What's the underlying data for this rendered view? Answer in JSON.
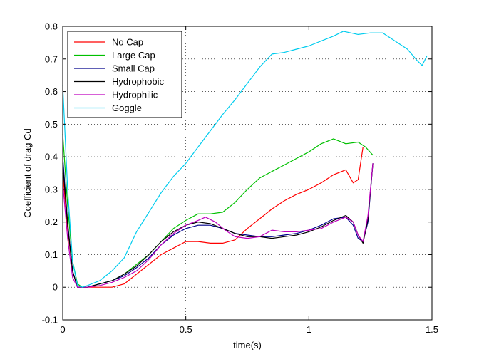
{
  "chart_data": {
    "type": "line",
    "title": "",
    "xlabel": "time(s)",
    "ylabel": "Coefficient of drag Cd",
    "xlim": [
      0,
      1.5
    ],
    "ylim": [
      -0.1,
      0.8
    ],
    "xticks": [
      0,
      0.5,
      1,
      1.5
    ],
    "xtick_labels": [
      "0",
      "0.5",
      "1",
      "1.5"
    ],
    "yticks": [
      -0.1,
      0,
      0.1,
      0.2,
      0.3,
      0.4,
      0.5,
      0.6,
      0.7,
      0.8
    ],
    "ytick_labels": [
      "-0.1",
      "0",
      "0.1",
      "0.2",
      "0.3",
      "0.4",
      "0.5",
      "0.6",
      "0.7",
      "0.8"
    ],
    "grid": true,
    "legend_position": "top-left",
    "series": [
      {
        "name": "No Cap",
        "color": "#ff0000",
        "x": [
          0,
          0.02,
          0.04,
          0.06,
          0.08,
          0.1,
          0.15,
          0.2,
          0.25,
          0.3,
          0.35,
          0.4,
          0.45,
          0.5,
          0.55,
          0.6,
          0.65,
          0.7,
          0.75,
          0.8,
          0.85,
          0.9,
          0.95,
          1.0,
          1.05,
          1.1,
          1.15,
          1.18,
          1.2,
          1.22
        ],
        "y": [
          0.35,
          0.18,
          0.05,
          0.0,
          0.0,
          0.0,
          0.0,
          0.0,
          0.01,
          0.04,
          0.07,
          0.1,
          0.12,
          0.14,
          0.14,
          0.135,
          0.135,
          0.145,
          0.18,
          0.21,
          0.24,
          0.265,
          0.285,
          0.3,
          0.32,
          0.345,
          0.36,
          0.32,
          0.33,
          0.43
        ]
      },
      {
        "name": "Large Cap",
        "color": "#00c000",
        "x": [
          0,
          0.02,
          0.04,
          0.06,
          0.08,
          0.1,
          0.15,
          0.2,
          0.25,
          0.3,
          0.35,
          0.4,
          0.45,
          0.5,
          0.55,
          0.6,
          0.65,
          0.7,
          0.75,
          0.8,
          0.85,
          0.9,
          0.95,
          1.0,
          1.05,
          1.1,
          1.15,
          1.2,
          1.23,
          1.26
        ],
        "y": [
          0.47,
          0.25,
          0.08,
          0.01,
          0.0,
          0.0,
          0.01,
          0.02,
          0.04,
          0.07,
          0.1,
          0.14,
          0.18,
          0.205,
          0.225,
          0.225,
          0.23,
          0.26,
          0.3,
          0.335,
          0.355,
          0.375,
          0.395,
          0.415,
          0.44,
          0.455,
          0.44,
          0.445,
          0.43,
          0.405
        ]
      },
      {
        "name": "Small Cap",
        "color": "#00008b",
        "x": [
          0,
          0.02,
          0.04,
          0.06,
          0.08,
          0.1,
          0.15,
          0.2,
          0.25,
          0.3,
          0.35,
          0.4,
          0.45,
          0.5,
          0.55,
          0.6,
          0.65,
          0.7,
          0.75,
          0.8,
          0.85,
          0.9,
          0.95,
          1.0,
          1.05,
          1.1,
          1.15,
          1.18,
          1.2,
          1.22,
          1.24,
          1.26
        ],
        "y": [
          0.4,
          0.2,
          0.05,
          0.0,
          0.0,
          0.0,
          0.01,
          0.02,
          0.035,
          0.06,
          0.09,
          0.13,
          0.16,
          0.18,
          0.19,
          0.19,
          0.18,
          0.165,
          0.16,
          0.155,
          0.155,
          0.16,
          0.165,
          0.175,
          0.19,
          0.21,
          0.215,
          0.19,
          0.15,
          0.14,
          0.2,
          0.38
        ]
      },
      {
        "name": "Hydrophobic",
        "color": "#000000",
        "x": [
          0,
          0.02,
          0.04,
          0.06,
          0.08,
          0.1,
          0.15,
          0.2,
          0.25,
          0.3,
          0.35,
          0.4,
          0.45,
          0.5,
          0.55,
          0.6,
          0.65,
          0.7,
          0.75,
          0.8,
          0.85,
          0.9,
          0.95,
          1.0,
          1.05,
          1.1,
          1.15,
          1.18,
          1.2,
          1.22,
          1.24,
          1.26
        ],
        "y": [
          0.38,
          0.19,
          0.05,
          0.0,
          0.0,
          0.0,
          0.01,
          0.02,
          0.04,
          0.065,
          0.1,
          0.14,
          0.17,
          0.19,
          0.2,
          0.195,
          0.18,
          0.165,
          0.155,
          0.155,
          0.15,
          0.155,
          0.16,
          0.17,
          0.185,
          0.205,
          0.22,
          0.2,
          0.16,
          0.135,
          0.21,
          0.38
        ]
      },
      {
        "name": "Hydrophilic",
        "color": "#bf00bf",
        "x": [
          0,
          0.02,
          0.04,
          0.06,
          0.08,
          0.1,
          0.15,
          0.2,
          0.25,
          0.3,
          0.35,
          0.4,
          0.45,
          0.5,
          0.55,
          0.58,
          0.62,
          0.66,
          0.7,
          0.75,
          0.8,
          0.85,
          0.9,
          0.95,
          1.0,
          1.05,
          1.1,
          1.15,
          1.18,
          1.2,
          1.22,
          1.24,
          1.26
        ],
        "y": [
          0.32,
          0.15,
          0.03,
          0.0,
          0.0,
          0.0,
          0.005,
          0.015,
          0.03,
          0.05,
          0.085,
          0.13,
          0.165,
          0.19,
          0.205,
          0.215,
          0.2,
          0.175,
          0.155,
          0.15,
          0.155,
          0.175,
          0.17,
          0.17,
          0.175,
          0.18,
          0.2,
          0.215,
          0.2,
          0.16,
          0.14,
          0.22,
          0.38
        ]
      },
      {
        "name": "Goggle",
        "color": "#00ccee",
        "x": [
          0,
          0.02,
          0.04,
          0.06,
          0.08,
          0.1,
          0.15,
          0.2,
          0.25,
          0.3,
          0.35,
          0.4,
          0.45,
          0.5,
          0.55,
          0.6,
          0.65,
          0.7,
          0.75,
          0.8,
          0.85,
          0.9,
          0.95,
          1.0,
          1.05,
          1.1,
          1.14,
          1.2,
          1.25,
          1.3,
          1.35,
          1.4,
          1.44,
          1.46,
          1.48
        ],
        "y": [
          0.62,
          0.3,
          0.08,
          0.005,
          0.0,
          0.005,
          0.02,
          0.05,
          0.09,
          0.17,
          0.23,
          0.29,
          0.34,
          0.38,
          0.43,
          0.48,
          0.53,
          0.575,
          0.625,
          0.675,
          0.715,
          0.72,
          0.73,
          0.74,
          0.755,
          0.77,
          0.785,
          0.775,
          0.78,
          0.78,
          0.755,
          0.73,
          0.695,
          0.68,
          0.71
        ]
      }
    ]
  }
}
